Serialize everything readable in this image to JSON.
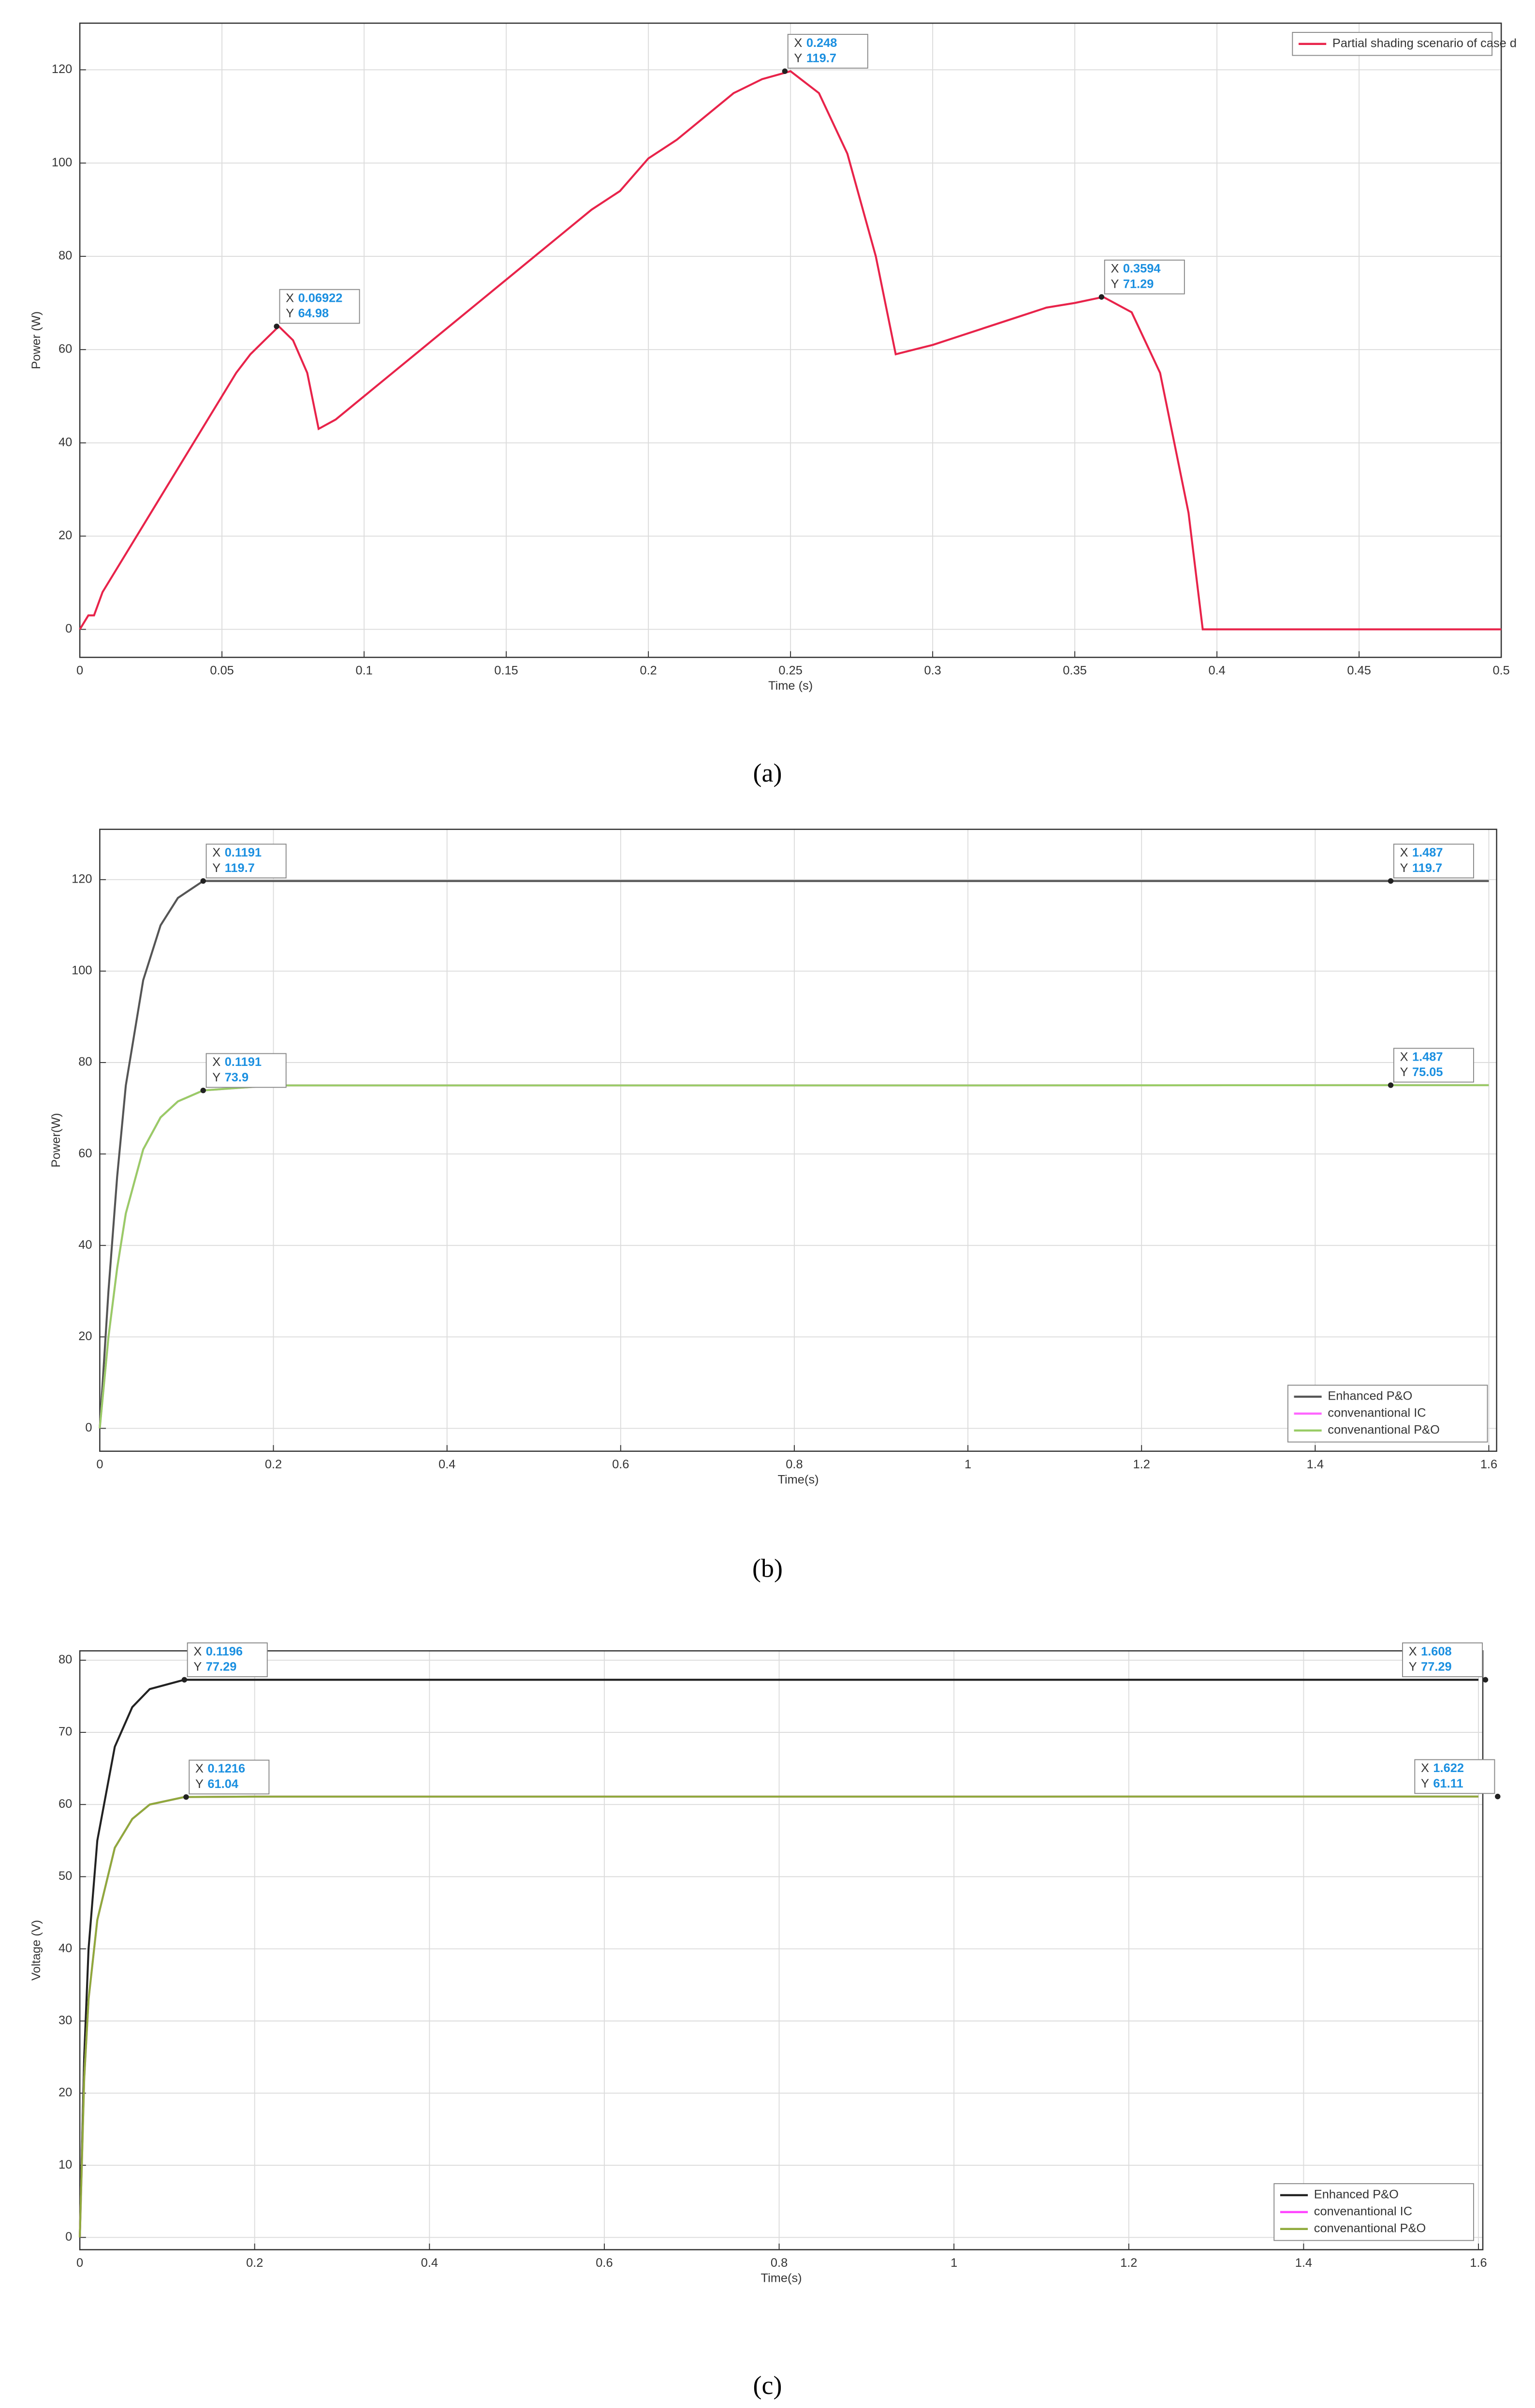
{
  "chart_data": [
    {
      "type": "line",
      "caption": "(a)",
      "xlabel": "Time (s)",
      "ylabel": "Power (W)",
      "x": [
        0,
        0.003,
        0.005,
        0.008,
        0.018,
        0.028,
        0.036,
        0.042,
        0.046,
        0.05,
        0.055,
        0.06,
        0.065,
        0.07,
        0.075,
        0.08,
        0.084,
        0.09,
        0.1,
        0.11,
        0.12,
        0.13,
        0.14,
        0.15,
        0.16,
        0.17,
        0.18,
        0.19,
        0.2,
        0.21,
        0.22,
        0.23,
        0.24,
        0.25,
        0.26,
        0.27,
        0.28,
        0.287,
        0.3,
        0.31,
        0.32,
        0.33,
        0.34,
        0.35,
        0.36,
        0.37,
        0.38,
        0.39,
        0.395,
        0.4,
        0.5
      ],
      "series": [
        {
          "name": "Partial shading scenario of case d",
          "color": "#e8234a",
          "values": [
            0,
            3,
            3,
            8,
            18,
            28,
            36,
            42,
            46,
            50,
            55,
            59,
            62,
            64.98,
            62,
            55,
            43,
            45,
            50,
            55,
            60,
            65,
            70,
            75,
            80,
            85,
            90,
            94,
            101,
            105,
            110,
            115,
            118,
            119.7,
            115,
            102,
            80,
            59,
            61,
            63,
            65,
            67,
            69,
            70,
            71.29,
            68,
            55,
            25,
            0,
            0,
            0
          ]
        }
      ],
      "datatip_prefix": [
        "X",
        "Y"
      ],
      "datatips": [
        {
          "x": 0.06922,
          "y": 64.98
        },
        {
          "x": 0.248,
          "y": 119.7
        },
        {
          "x": 0.3594,
          "y": 71.29
        }
      ],
      "xlim": [
        0,
        0.5
      ],
      "xticks": [
        0,
        0.05,
        0.1,
        0.15,
        0.2,
        0.25,
        0.3,
        0.35,
        0.4,
        0.45,
        0.5
      ],
      "ylim": [
        -6,
        130
      ],
      "yticks": [
        0,
        20,
        40,
        60,
        80,
        100,
        120
      ],
      "grid": true,
      "legend": "upper right"
    },
    {
      "type": "line",
      "caption": "(b)",
      "xlabel": "Time(s)",
      "ylabel": "Power(W)",
      "x": [
        0,
        0.01,
        0.02,
        0.03,
        0.05,
        0.07,
        0.09,
        0.1191,
        0.2,
        0.5,
        1,
        1.487,
        1.6
      ],
      "series": [
        {
          "name": "Enhanced P&O",
          "color": "#555555",
          "values": [
            0,
            30,
            55,
            75,
            98,
            110,
            116,
            119.7,
            119.7,
            119.7,
            119.7,
            119.7,
            119.7
          ]
        },
        {
          "name": "convenantional IC",
          "color": "#ff66ff",
          "values": [
            0,
            20,
            35,
            47,
            61,
            68,
            71.5,
            73.9,
            75,
            75,
            75,
            75.05,
            75.05
          ]
        },
        {
          "name": "convenantional P&O",
          "color": "#99cc66",
          "values": [
            0,
            20,
            35,
            47,
            61,
            68,
            71.5,
            73.9,
            75,
            75,
            75,
            75.05,
            75.05
          ]
        }
      ],
      "datatip_prefix": [
        "X",
        "Y"
      ],
      "datatips": [
        {
          "x": 0.1191,
          "y": 119.7
        },
        {
          "x": 1.487,
          "y": 119.7
        },
        {
          "x": 0.1191,
          "y": 73.9
        },
        {
          "x": 1.487,
          "y": 75.05
        }
      ],
      "xlim": [
        0,
        1.609
      ],
      "xticks": [
        0,
        0.2,
        0.4,
        0.6,
        0.8,
        1,
        1.2,
        1.4,
        1.6
      ],
      "ylim": [
        -5,
        131
      ],
      "yticks": [
        0,
        20,
        40,
        60,
        80,
        100,
        120
      ],
      "grid": true,
      "legend": "lower right"
    },
    {
      "type": "line",
      "caption": "(c)",
      "xlabel": "Time(s)",
      "ylabel": "Voltage (V)",
      "x": [
        0,
        0.005,
        0.01,
        0.02,
        0.04,
        0.06,
        0.08,
        0.1196,
        0.2,
        1,
        1.6
      ],
      "series": [
        {
          "name": "Enhanced P&O",
          "color": "#222222",
          "values": [
            0,
            25,
            40,
            55,
            68,
            73.5,
            76,
            77.29,
            77.29,
            77.29,
            77.29
          ]
        },
        {
          "name": "convenantional IC",
          "color": "#ff44ff",
          "values": [
            0,
            22,
            33,
            44,
            54,
            58,
            60,
            61.04,
            61.1,
            61.1,
            61.11
          ]
        },
        {
          "name": "convenantional P&O",
          "color": "#8faa3c",
          "values": [
            0,
            22,
            33,
            44,
            54,
            58,
            60,
            61.04,
            61.1,
            61.1,
            61.11
          ]
        }
      ],
      "datatip_prefix": [
        "X",
        "Y"
      ],
      "datatips": [
        {
          "x": 0.1196,
          "y": 77.29
        },
        {
          "x": 1.608,
          "y": 77.29
        },
        {
          "x": 0.1216,
          "y": 61.04
        },
        {
          "x": 1.622,
          "y": 61.11
        }
      ],
      "xlim": [
        0,
        1.605
      ],
      "xticks": [
        0,
        0.2,
        0.4,
        0.6,
        0.8,
        1,
        1.2,
        1.4,
        1.6
      ],
      "ylim": [
        -1.7,
        81.3
      ],
      "yticks": [
        0,
        10,
        20,
        30,
        40,
        50,
        60,
        70,
        80
      ],
      "grid": true,
      "legend": "lower right"
    }
  ]
}
